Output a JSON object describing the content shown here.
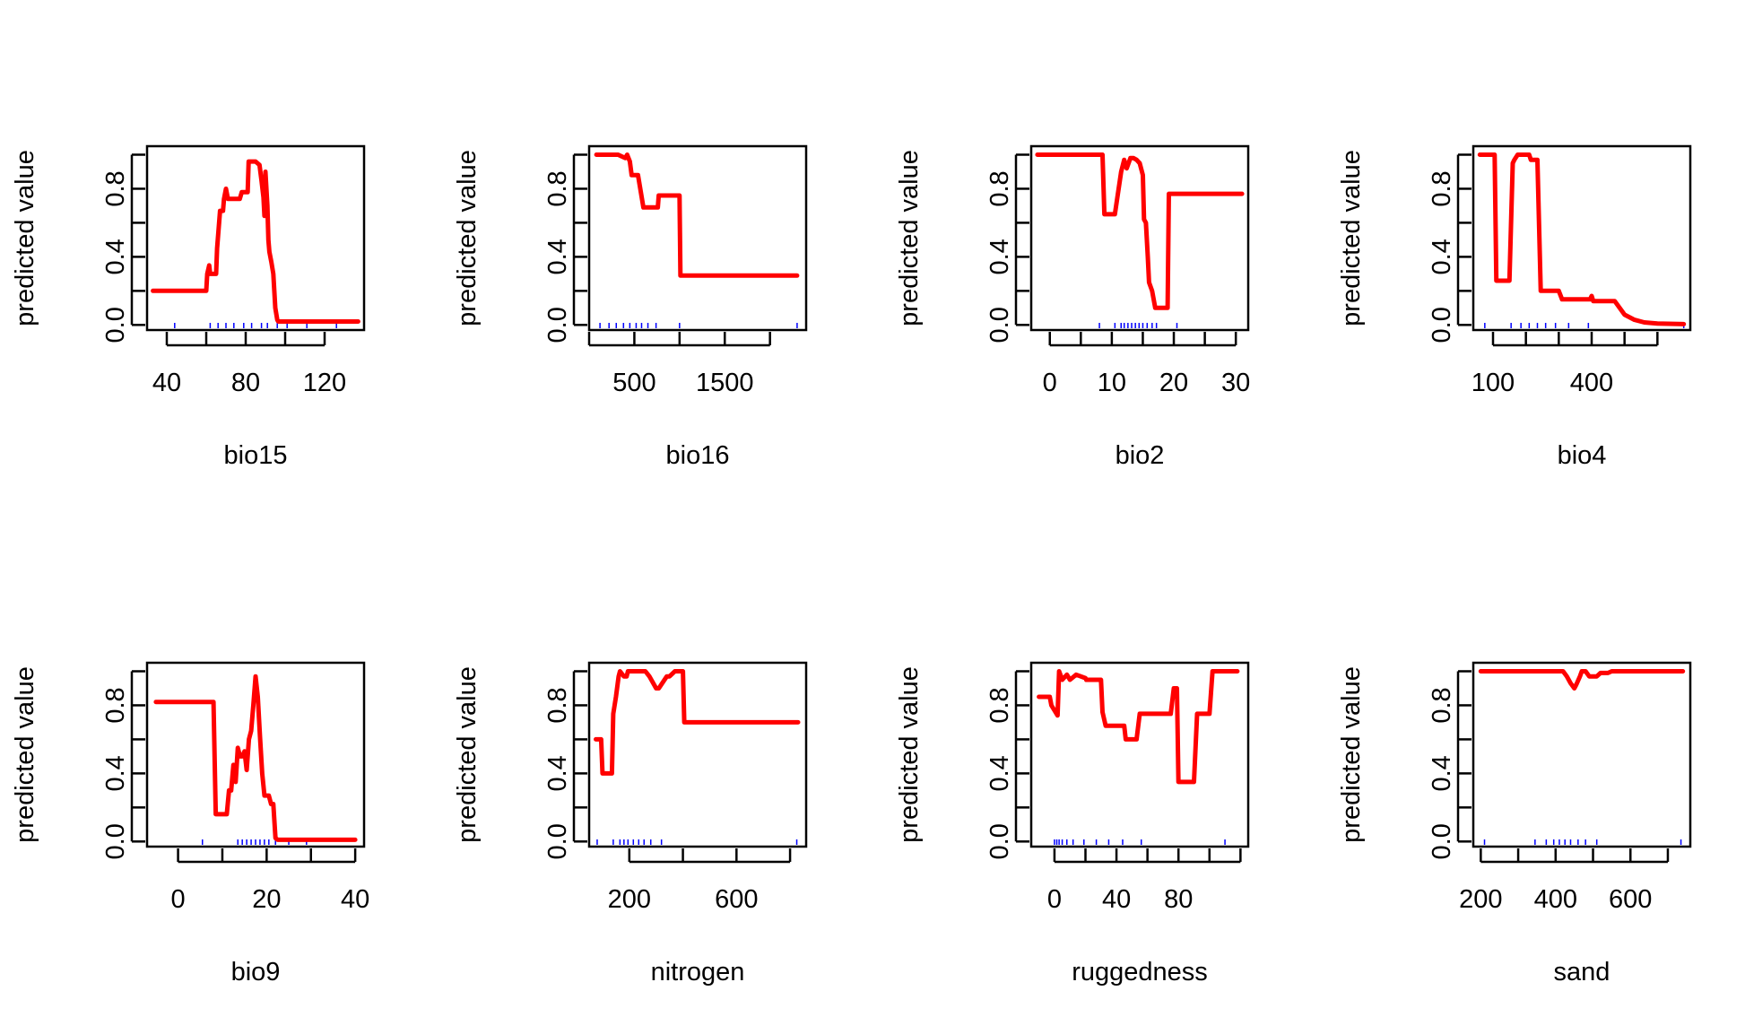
{
  "chart_data": [
    {
      "type": "line",
      "xlabel": "bio15",
      "ylabel": "predicted value",
      "xlim": [
        30,
        140
      ],
      "ylim": [
        -0.03,
        1.05
      ],
      "xticks": [
        40,
        60,
        80,
        100,
        120
      ],
      "xtick_labels": [
        "40",
        "",
        "80",
        "",
        "120"
      ],
      "yticks": [
        0.0,
        0.2,
        0.4,
        0.6,
        0.8,
        1.0
      ],
      "ytick_labels": [
        "0.0",
        "",
        "0.4",
        "",
        "0.8",
        ""
      ],
      "line_color": "#ff0000",
      "rug_color": "#0000ff",
      "rug": [
        44,
        62,
        66,
        70,
        74,
        79,
        83,
        88,
        91,
        96,
        101,
        111,
        126
      ],
      "x": [
        33,
        60,
        60.5,
        61.5,
        62,
        65,
        65.5,
        67,
        68.5,
        69,
        70,
        71,
        77,
        78,
        81,
        81.5,
        85,
        86,
        87,
        88,
        89,
        89.5,
        90,
        91,
        91.5,
        92,
        93,
        94,
        94.5,
        95,
        96,
        96.5,
        97,
        97.5,
        98,
        99,
        137
      ],
      "y": [
        0.2,
        0.2,
        0.3,
        0.35,
        0.3,
        0.3,
        0.45,
        0.67,
        0.67,
        0.74,
        0.8,
        0.74,
        0.74,
        0.78,
        0.78,
        0.96,
        0.96,
        0.95,
        0.94,
        0.85,
        0.75,
        0.64,
        0.9,
        0.7,
        0.5,
        0.43,
        0.37,
        0.3,
        0.2,
        0.1,
        0.03,
        0.02,
        0.02,
        0.02,
        0.02,
        0.02,
        0.02
      ]
    },
    {
      "type": "line",
      "xlabel": "bio16",
      "ylabel": "predicted value",
      "xlim": [
        0,
        2400
      ],
      "ylim": [
        -0.03,
        1.05
      ],
      "xticks": [
        0,
        500,
        1000,
        1500,
        2000
      ],
      "xtick_labels": [
        "",
        "500",
        "",
        "1500",
        ""
      ],
      "yticks": [
        0.0,
        0.2,
        0.4,
        0.6,
        0.8,
        1.0
      ],
      "ytick_labels": [
        "0.0",
        "",
        "0.4",
        "",
        "0.8",
        ""
      ],
      "line_color": "#ff0000",
      "rug_color": "#0000ff",
      "rug": [
        120,
        220,
        300,
        380,
        450,
        520,
        580,
        650,
        740,
        1000,
        2300
      ],
      "x": [
        80,
        320,
        400,
        420,
        450,
        470,
        540,
        600,
        610,
        760,
        770,
        1000,
        1010,
        2300
      ],
      "y": [
        1.0,
        1.0,
        0.98,
        1.0,
        0.96,
        0.88,
        0.88,
        0.69,
        0.69,
        0.69,
        0.76,
        0.76,
        0.29,
        0.29
      ]
    },
    {
      "type": "line",
      "xlabel": "bio2",
      "ylabel": "predicted value",
      "xlim": [
        -3,
        32
      ],
      "ylim": [
        -0.03,
        1.05
      ],
      "xticks": [
        0,
        5,
        10,
        15,
        20,
        25,
        30
      ],
      "xtick_labels": [
        "0",
        "",
        "10",
        "",
        "20",
        "",
        "30"
      ],
      "yticks": [
        0.0,
        0.2,
        0.4,
        0.6,
        0.8,
        1.0
      ],
      "ytick_labels": [
        "0.0",
        "",
        "0.4",
        "",
        "0.8",
        ""
      ],
      "line_color": "#ff0000",
      "rug_color": "#0000ff",
      "rug": [
        8,
        10.5,
        11.5,
        12,
        12.6,
        13.2,
        13.8,
        14.4,
        15,
        15.7,
        16.5,
        17.2,
        20.5
      ],
      "x": [
        -2,
        8.5,
        8.8,
        10.5,
        10.9,
        11.5,
        12,
        12.4,
        13,
        13.5,
        14,
        14.5,
        15,
        15.2,
        15.5,
        15.8,
        16,
        16.5,
        17,
        17,
        18.5,
        19,
        19.2,
        31
      ],
      "y": [
        1.0,
        1.0,
        0.65,
        0.65,
        0.75,
        0.9,
        0.97,
        0.92,
        0.98,
        0.98,
        0.97,
        0.95,
        0.88,
        0.62,
        0.6,
        0.4,
        0.25,
        0.2,
        0.1,
        0.1,
        0.1,
        0.1,
        0.77,
        0.77
      ]
    },
    {
      "type": "line",
      "xlabel": "bio4",
      "ylabel": "predicted value",
      "xlim": [
        40,
        700
      ],
      "ylim": [
        -0.03,
        1.05
      ],
      "xticks": [
        100,
        200,
        300,
        400,
        500,
        600
      ],
      "xtick_labels": [
        "100",
        "",
        "",
        "400",
        "",
        ""
      ],
      "yticks": [
        0.0,
        0.2,
        0.4,
        0.6,
        0.8,
        1.0
      ],
      "ytick_labels": [
        "0.0",
        "",
        "0.4",
        "",
        "0.8",
        ""
      ],
      "line_color": "#ff0000",
      "rug_color": "#0000ff",
      "rug": [
        75,
        155,
        185,
        210,
        235,
        260,
        290,
        330,
        390,
        680
      ],
      "x": [
        60,
        105,
        110,
        150,
        160,
        165,
        175,
        210,
        215,
        235,
        245,
        300,
        310,
        370,
        380,
        395,
        400,
        405,
        470,
        500,
        530,
        560,
        600,
        680
      ],
      "y": [
        1.0,
        1.0,
        0.26,
        0.26,
        0.95,
        0.97,
        1.0,
        1.0,
        0.97,
        0.97,
        0.2,
        0.2,
        0.15,
        0.15,
        0.15,
        0.15,
        0.17,
        0.14,
        0.14,
        0.06,
        0.03,
        0.015,
        0.008,
        0.005
      ]
    },
    {
      "type": "line",
      "xlabel": "bio9",
      "ylabel": "predicted value",
      "xlim": [
        -7,
        42
      ],
      "ylim": [
        -0.03,
        1.05
      ],
      "xticks": [
        0,
        10,
        20,
        30,
        40
      ],
      "xtick_labels": [
        "0",
        "",
        "20",
        "",
        "40"
      ],
      "yticks": [
        0.0,
        0.2,
        0.4,
        0.6,
        0.8,
        1.0
      ],
      "ytick_labels": [
        "0.0",
        "",
        "0.4",
        "",
        "0.8",
        ""
      ],
      "line_color": "#ff0000",
      "rug_color": "#0000ff",
      "rug": [
        5.5,
        13.5,
        14.5,
        15.5,
        16.5,
        17.5,
        18.5,
        19.5,
        20.5,
        22,
        25,
        29
      ],
      "x": [
        -5,
        8,
        8.5,
        11,
        11.5,
        12,
        12.5,
        13,
        13.5,
        14,
        14.5,
        15,
        15.5,
        16,
        16.5,
        17,
        17.5,
        18,
        18.5,
        19,
        19.5,
        20,
        20.5,
        21,
        21.5,
        22,
        22.5,
        23,
        40
      ],
      "y": [
        0.82,
        0.82,
        0.16,
        0.16,
        0.3,
        0.3,
        0.45,
        0.35,
        0.55,
        0.5,
        0.5,
        0.53,
        0.42,
        0.6,
        0.65,
        0.8,
        0.97,
        0.85,
        0.62,
        0.4,
        0.27,
        0.27,
        0.27,
        0.22,
        0.22,
        0.02,
        0.01,
        0.01,
        0.01
      ]
    },
    {
      "type": "line",
      "xlabel": "nitrogen",
      "ylabel": "predicted value",
      "xlim": [
        50,
        860
      ],
      "ylim": [
        -0.03,
        1.05
      ],
      "xticks": [
        200,
        400,
        600,
        800
      ],
      "xtick_labels": [
        "200",
        "",
        "600",
        ""
      ],
      "yticks": [
        0.0,
        0.2,
        0.4,
        0.6,
        0.8,
        1.0
      ],
      "ytick_labels": [
        "0.0",
        "",
        "0.4",
        "",
        "0.8",
        ""
      ],
      "line_color": "#ff0000",
      "rug_color": "#0000ff",
      "rug": [
        80,
        140,
        165,
        180,
        195,
        215,
        235,
        255,
        280,
        320,
        825
      ],
      "x": [
        75,
        95,
        100,
        135,
        140,
        150,
        160,
        165,
        180,
        190,
        195,
        210,
        215,
        260,
        275,
        300,
        310,
        340,
        350,
        370,
        400,
        405,
        830
      ],
      "y": [
        0.6,
        0.6,
        0.4,
        0.4,
        0.75,
        0.85,
        0.97,
        1.0,
        0.97,
        0.97,
        1.0,
        1.0,
        1.0,
        1.0,
        0.97,
        0.9,
        0.9,
        0.97,
        0.97,
        1.0,
        1.0,
        0.7,
        0.7
      ]
    },
    {
      "type": "line",
      "xlabel": "ruggedness",
      "ylabel": "predicted value",
      "xlim": [
        -15,
        125
      ],
      "ylim": [
        -0.03,
        1.05
      ],
      "xticks": [
        0,
        20,
        40,
        60,
        80,
        100,
        120
      ],
      "xtick_labels": [
        "0",
        "",
        "40",
        "",
        "80",
        "",
        ""
      ],
      "yticks": [
        0.0,
        0.2,
        0.4,
        0.6,
        0.8,
        1.0
      ],
      "ytick_labels": [
        "0.0",
        "",
        "0.4",
        "",
        "0.8",
        ""
      ],
      "line_color": "#ff0000",
      "rug_color": "#0000ff",
      "rug": [
        0,
        1.5,
        3,
        5,
        8,
        12,
        19,
        27,
        35,
        44,
        56,
        110
      ],
      "x": [
        -10,
        -3,
        -2,
        2,
        3,
        5,
        8,
        10,
        14,
        20,
        20.5,
        30,
        31,
        33,
        35,
        45,
        46,
        53,
        55,
        75,
        77,
        79,
        80,
        90,
        92,
        100,
        102,
        118
      ],
      "y": [
        0.85,
        0.85,
        0.8,
        0.74,
        1.0,
        0.95,
        0.98,
        0.95,
        0.98,
        0.96,
        0.95,
        0.95,
        0.76,
        0.68,
        0.68,
        0.68,
        0.6,
        0.6,
        0.75,
        0.75,
        0.9,
        0.9,
        0.35,
        0.35,
        0.75,
        0.75,
        1.0,
        1.0
      ]
    },
    {
      "type": "line",
      "xlabel": "sand",
      "ylabel": "predicted value",
      "xlim": [
        180,
        760
      ],
      "ylim": [
        -0.03,
        1.05
      ],
      "xticks": [
        200,
        300,
        400,
        500,
        600,
        700
      ],
      "xtick_labels": [
        "200",
        "",
        "400",
        "",
        "600",
        ""
      ],
      "yticks": [
        0.0,
        0.2,
        0.4,
        0.6,
        0.8,
        1.0
      ],
      "ytick_labels": [
        "0.0",
        "",
        "0.4",
        "",
        "0.8",
        ""
      ],
      "line_color": "#ff0000",
      "rug_color": "#0000ff",
      "rug": [
        210,
        345,
        375,
        395,
        410,
        425,
        440,
        460,
        480,
        510,
        735
      ],
      "x": [
        200,
        420,
        430,
        440,
        450,
        455,
        465,
        470,
        480,
        490,
        510,
        520,
        540,
        550,
        740
      ],
      "y": [
        1.0,
        1.0,
        0.97,
        0.93,
        0.9,
        0.92,
        0.97,
        1.0,
        1.0,
        0.97,
        0.97,
        0.99,
        0.99,
        1.0,
        1.0
      ]
    }
  ]
}
